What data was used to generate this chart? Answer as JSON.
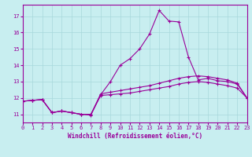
{
  "xlabel": "Windchill (Refroidissement éolien,°C)",
  "xlim": [
    0,
    23
  ],
  "ylim": [
    10.5,
    17.7
  ],
  "yticks": [
    11,
    12,
    13,
    14,
    15,
    16,
    17
  ],
  "xticks": [
    0,
    1,
    2,
    3,
    4,
    5,
    6,
    7,
    8,
    9,
    10,
    11,
    12,
    13,
    14,
    15,
    16,
    17,
    18,
    19,
    20,
    21,
    22,
    23
  ],
  "bg_color": "#c8eef0",
  "grid_color": "#a8d8db",
  "line_color": "#990099",
  "line_spike": [
    11.8,
    11.85,
    11.9,
    11.1,
    11.2,
    11.1,
    11.0,
    10.95,
    12.2,
    13.0,
    14.0,
    14.4,
    15.0,
    15.9,
    17.35,
    16.7,
    16.65,
    14.5,
    13.1,
    13.2,
    13.05,
    13.0,
    12.85,
    12.0
  ],
  "line_mid": [
    11.8,
    11.85,
    11.9,
    11.1,
    11.2,
    11.1,
    11.0,
    11.0,
    12.25,
    12.35,
    12.45,
    12.55,
    12.65,
    12.75,
    12.9,
    13.05,
    13.2,
    13.3,
    13.35,
    13.3,
    13.2,
    13.1,
    12.9,
    12.0
  ],
  "line_low": [
    11.8,
    11.85,
    11.9,
    11.1,
    11.2,
    11.1,
    11.0,
    11.0,
    12.15,
    12.2,
    12.25,
    12.3,
    12.4,
    12.5,
    12.6,
    12.7,
    12.85,
    12.95,
    13.0,
    12.95,
    12.85,
    12.75,
    12.6,
    12.0
  ]
}
